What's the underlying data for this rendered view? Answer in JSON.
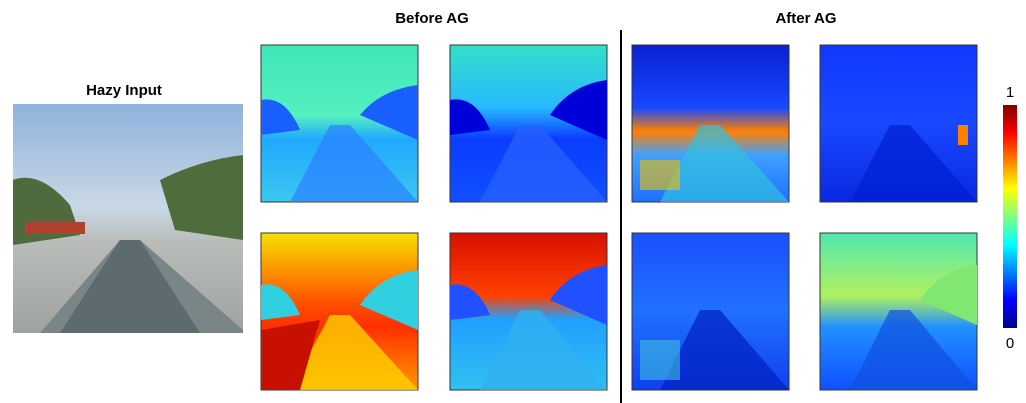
{
  "figure": {
    "input_title": "Hazy Input",
    "before_title": "Before AG",
    "after_title": "After AG",
    "colorbar": {
      "max_label": "1",
      "min_label": "0"
    }
  }
}
